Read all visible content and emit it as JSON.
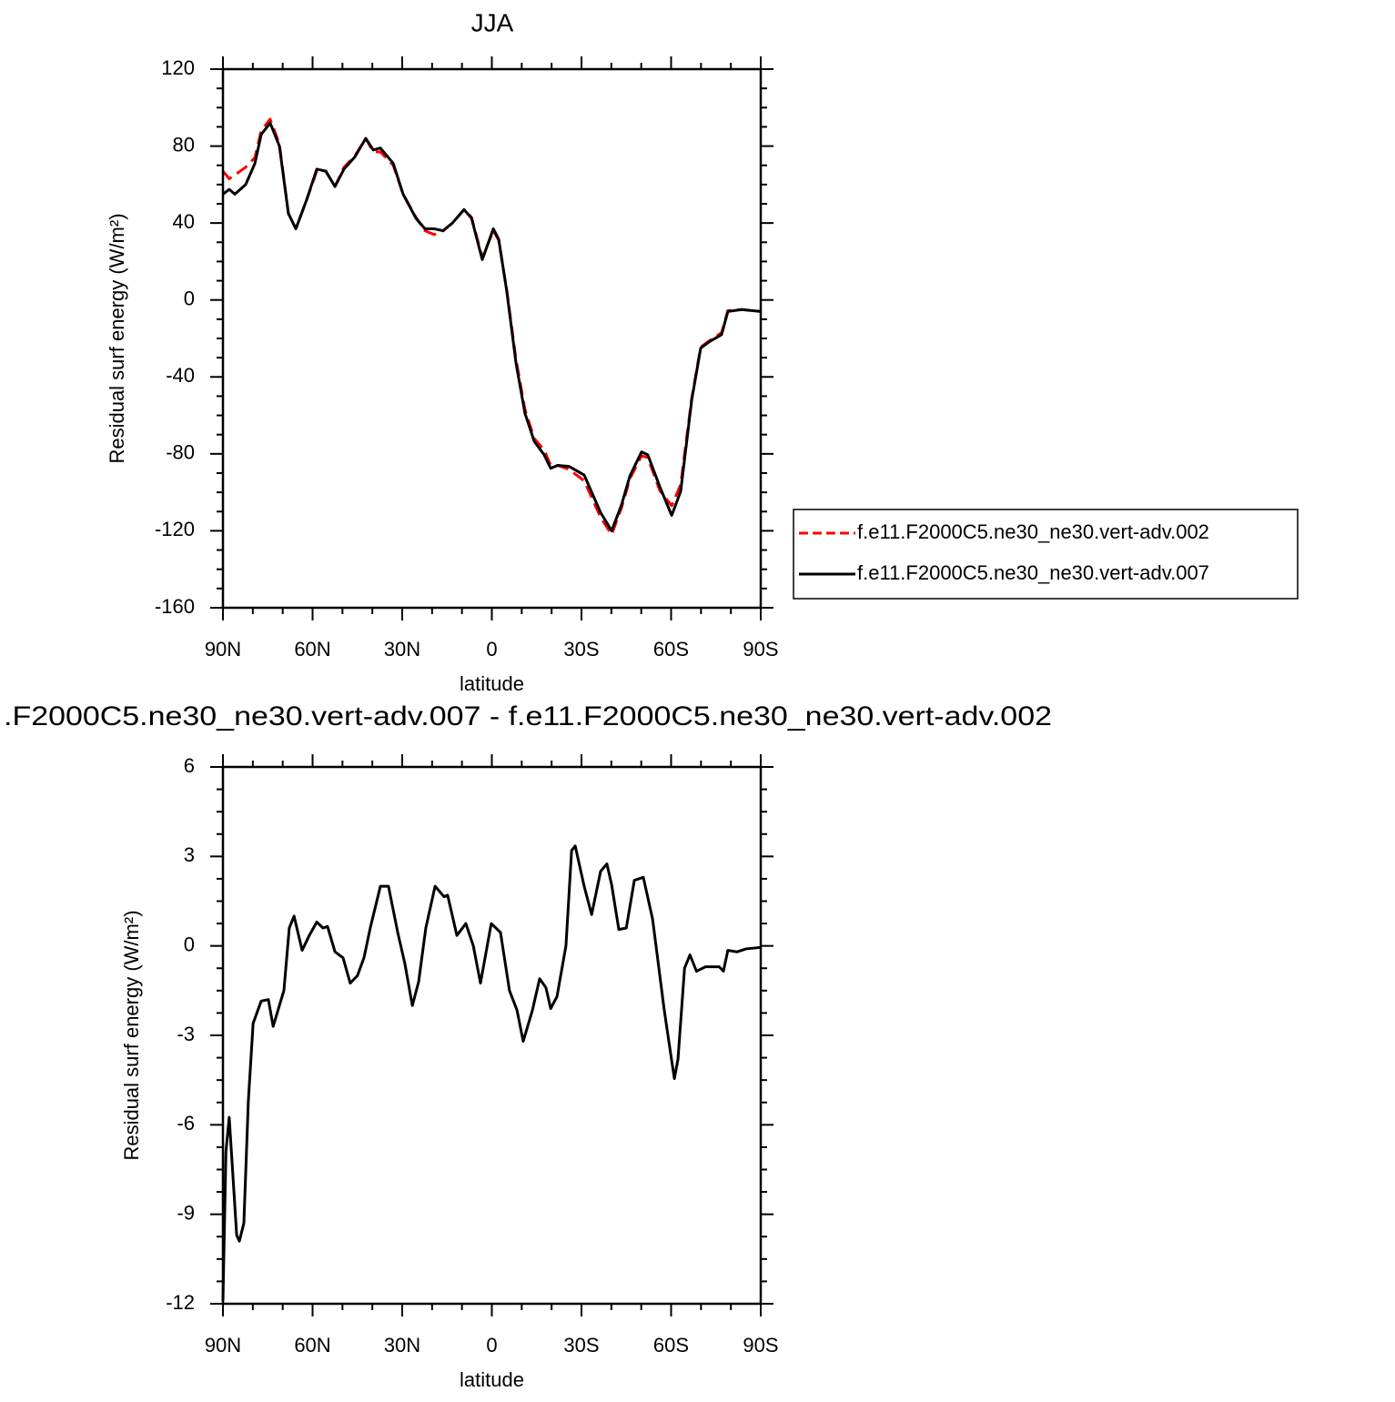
{
  "chart_data": [
    {
      "type": "line",
      "title": "JJA",
      "xlabel": "latitude",
      "ylabel": "Residual surf energy (W/m²)",
      "x": [
        90,
        87.9,
        86,
        82.4,
        79.3,
        77.2,
        74.2,
        71.1,
        68.1,
        65.6,
        62,
        58.6,
        55.6,
        52.5,
        49.5,
        45.8,
        42.2,
        39.7,
        37.3,
        33,
        29.7,
        25.4,
        22.4,
        19.3,
        16.3,
        13.2,
        9.3,
        6.8,
        3.2,
        -0.5,
        -2.3,
        -5,
        -8.1,
        -11.1,
        -14.2,
        -17.5,
        -19.7,
        -22.1,
        -25.8,
        -30.9,
        -36.4,
        -40.1,
        -43.4,
        -46.2,
        -50.1,
        -52.2,
        -56.2,
        -60.2,
        -63.2,
        -66.9,
        -69.9,
        -73,
        -76.9,
        -79,
        -83.6,
        -90
      ],
      "series": [
        {
          "name": "f.e11.F2000C5.ne30_ne30.vert-adv.002",
          "color": "#ff0000",
          "dash": true,
          "values": [
            67,
            63,
            65,
            69,
            74,
            88,
            94,
            81,
            45,
            37,
            52,
            67,
            67,
            59,
            69,
            75,
            84,
            77,
            77,
            70,
            55,
            43,
            36,
            34,
            36,
            40,
            47,
            43,
            22,
            36,
            31,
            5,
            -31,
            -57,
            -72,
            -78,
            -86,
            -86,
            -88,
            -94,
            -113,
            -122,
            -108,
            -93,
            -81,
            -82,
            -99,
            -107,
            -96,
            -51,
            -24.5,
            -21,
            -17,
            -5.5,
            -5,
            -6
          ]
        },
        {
          "name": "f.e11.F2000C5.ne30_ne30.vert-adv.007",
          "color": "#000000",
          "dash": false,
          "values": [
            55,
            57.5,
            55,
            60,
            71,
            86,
            92,
            80,
            45,
            37,
            52,
            68,
            67,
            59,
            68,
            74.5,
            84,
            78,
            79,
            71,
            55,
            42.5,
            37,
            37,
            36,
            40,
            47,
            42.5,
            21,
            37,
            31.5,
            4.5,
            -33,
            -59,
            -73.5,
            -80.5,
            -87.5,
            -86,
            -86.5,
            -91,
            -110.5,
            -120,
            -106.5,
            -91.5,
            -79,
            -80.5,
            -97,
            -112,
            -99.5,
            -52,
            -25,
            -21.5,
            -18,
            -6,
            -5,
            -6
          ]
        }
      ],
      "xlim": [
        90,
        -90
      ],
      "xticks": [
        {
          "value": 90,
          "label": "90N"
        },
        {
          "value": 60,
          "label": "60N"
        },
        {
          "value": 30,
          "label": "30N"
        },
        0,
        {
          "value": -30,
          "label": "30S"
        },
        {
          "value": -60,
          "label": "60S"
        },
        {
          "value": -90,
          "label": "90S"
        }
      ],
      "ylim": [
        -160,
        120
      ],
      "yticks": [
        120,
        80,
        40,
        0,
        -40,
        -80,
        -120,
        -160
      ],
      "legend": "right"
    },
    {
      "type": "line",
      "title": ".F2000C5.ne30_ne30.vert-adv.007 - f.e11.F2000C5.ne30_ne30.vert-adv.002",
      "xlabel": "latitude",
      "ylabel": "Residual surf energy (W/m²)",
      "x": [
        90,
        89,
        87.9,
        85.4,
        84.5,
        83,
        81.5,
        79.9,
        77.2,
        74.8,
        73.2,
        71.7,
        69.6,
        67.8,
        66.2,
        63.5,
        61.1,
        58.6,
        56.5,
        55,
        52.5,
        49.8,
        47.4,
        45,
        42.8,
        40.7,
        37.3,
        34.6,
        31.5,
        29.1,
        26.6,
        24.5,
        22.1,
        19,
        16,
        14.8,
        11.7,
        8.7,
        6.2,
        3.8,
        0.2,
        -2.9,
        -5.9,
        -8.4,
        -10.5,
        -13.6,
        -16,
        -18.1,
        -19.7,
        -21.8,
        -24.8,
        -26.7,
        -27.9,
        -30.9,
        -33.4,
        -36.4,
        -38.5,
        -40.1,
        -42.5,
        -45,
        -47.7,
        -50.7,
        -53.8,
        -57.7,
        -59.9,
        -61.1,
        -62.3,
        -64.5,
        -66.3,
        -68.5,
        -71.5,
        -73.6,
        -76.1,
        -77.5,
        -79,
        -82.1,
        -85.1,
        -90
      ],
      "series": [
        {
          "color": "#000000",
          "dash": false,
          "values": [
            -11.9,
            -6.9,
            -5.75,
            -9.7,
            -9.9,
            -9.3,
            -5.2,
            -2.6,
            -1.85,
            -1.8,
            -2.7,
            -2.2,
            -1.5,
            0.6,
            1.0,
            -0.15,
            0.35,
            0.8,
            0.6,
            0.65,
            -0.2,
            -0.4,
            -1.25,
            -1.0,
            -0.4,
            0.6,
            2.0,
            2.0,
            0.45,
            -0.6,
            -2.0,
            -1.2,
            0.6,
            2.0,
            1.65,
            1.7,
            0.35,
            0.75,
            0,
            -1.25,
            0.75,
            0.45,
            -1.5,
            -2.15,
            -3.2,
            -2.15,
            -1.1,
            -1.4,
            -2.1,
            -1.7,
            0,
            3.2,
            3.35,
            2.0,
            1.05,
            2.5,
            2.75,
            2.05,
            0.55,
            0.6,
            2.2,
            2.3,
            0.9,
            -2.15,
            -3.65,
            -4.45,
            -3.8,
            -0.75,
            -0.3,
            -0.85,
            -0.7,
            -0.7,
            -0.7,
            -0.85,
            -0.15,
            -0.2,
            -0.1,
            -0.05
          ]
        }
      ],
      "xlim": [
        90,
        -90
      ],
      "xticks": [
        {
          "value": 90,
          "label": "90N"
        },
        {
          "value": 60,
          "label": "60N"
        },
        {
          "value": 30,
          "label": "30N"
        },
        0,
        {
          "value": -30,
          "label": "30S"
        },
        {
          "value": -60,
          "label": "60S"
        },
        {
          "value": -90,
          "label": "90S"
        }
      ],
      "ylim": [
        -12,
        6
      ],
      "yticks": [
        6,
        3,
        0,
        -3,
        -6,
        -9,
        -12
      ]
    }
  ]
}
